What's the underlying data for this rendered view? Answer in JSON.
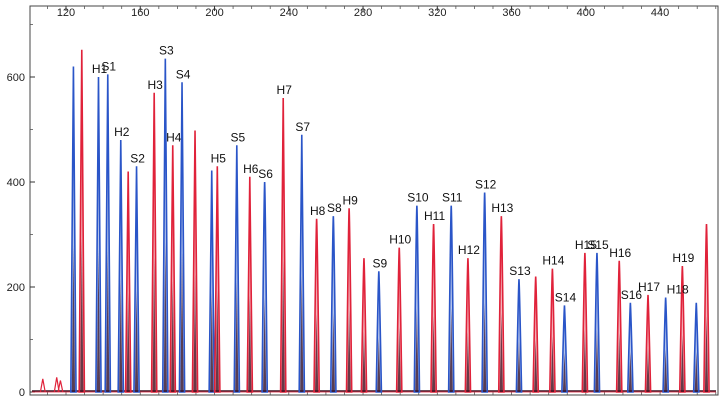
{
  "chart_data": {
    "type": "line",
    "title": "",
    "xlabel": "",
    "ylabel": "",
    "xlim": [
      104,
      470
    ],
    "ylim": [
      0,
      700
    ],
    "x_ticks": [
      120,
      160,
      200,
      240,
      280,
      320,
      360,
      400,
      440
    ],
    "y_ticks": [
      0,
      200,
      400,
      600
    ],
    "grid": false,
    "colors": {
      "blue": "#2a55c8",
      "red": "#e0223a",
      "dark": "#3a1020",
      "frame": "#333333"
    },
    "series": [
      {
        "color": "blue",
        "peaks": [
          {
            "x": 124,
            "y": 620,
            "label": ""
          },
          {
            "x": 137.5,
            "y": 600,
            "label": "H1"
          },
          {
            "x": 142.5,
            "y": 605,
            "label": "S1"
          },
          {
            "x": 149.5,
            "y": 480,
            "label": "H2"
          },
          {
            "x": 158,
            "y": 430,
            "label": "S2"
          },
          {
            "x": 173.5,
            "y": 635,
            "label": "S3"
          },
          {
            "x": 182.5,
            "y": 590,
            "label": "S4"
          },
          {
            "x": 198.5,
            "y": 422,
            "label": ""
          },
          {
            "x": 212,
            "y": 470,
            "label": "S5"
          },
          {
            "x": 227,
            "y": 400,
            "label": "S6"
          },
          {
            "x": 247,
            "y": 490,
            "label": "S7"
          },
          {
            "x": 264,
            "y": 335,
            "label": "S8"
          },
          {
            "x": 288.5,
            "y": 230,
            "label": "S9"
          },
          {
            "x": 309,
            "y": 355,
            "label": "S10"
          },
          {
            "x": 327.5,
            "y": 355,
            "label": "S11"
          },
          {
            "x": 345.5,
            "y": 380,
            "label": "S12"
          },
          {
            "x": 364,
            "y": 215,
            "label": "S13"
          },
          {
            "x": 388.5,
            "y": 165,
            "label": "S14"
          },
          {
            "x": 406,
            "y": 265,
            "label": "S15"
          },
          {
            "x": 424,
            "y": 170,
            "label": "S16"
          },
          {
            "x": 443,
            "y": 180,
            "label": ""
          },
          {
            "x": 459.5,
            "y": 170,
            "label": ""
          }
        ]
      },
      {
        "color": "red",
        "peaks": [
          {
            "x": 128.5,
            "y": 652,
            "label": ""
          },
          {
            "x": 153.5,
            "y": 420,
            "label": ""
          },
          {
            "x": 167.5,
            "y": 570,
            "label": "H3"
          },
          {
            "x": 177.5,
            "y": 470,
            "label": "H4"
          },
          {
            "x": 189.5,
            "y": 498,
            "label": ""
          },
          {
            "x": 201.5,
            "y": 430,
            "label": "H5"
          },
          {
            "x": 219,
            "y": 410,
            "label": "H6"
          },
          {
            "x": 237,
            "y": 560,
            "label": "H7"
          },
          {
            "x": 255,
            "y": 330,
            "label": "H8"
          },
          {
            "x": 272.5,
            "y": 350,
            "label": "H9"
          },
          {
            "x": 280.5,
            "y": 255,
            "label": ""
          },
          {
            "x": 299.5,
            "y": 275,
            "label": "H10"
          },
          {
            "x": 318,
            "y": 320,
            "label": "H11"
          },
          {
            "x": 336.5,
            "y": 255,
            "label": "H12"
          },
          {
            "x": 354.5,
            "y": 335,
            "label": "H13"
          },
          {
            "x": 373,
            "y": 220,
            "label": ""
          },
          {
            "x": 382,
            "y": 235,
            "label": "H14"
          },
          {
            "x": 399.5,
            "y": 265,
            "label": "H15"
          },
          {
            "x": 418,
            "y": 250,
            "label": "H16"
          },
          {
            "x": 433.5,
            "y": 185,
            "label": "H17"
          },
          {
            "x": 452,
            "y": 240,
            "label": "H19"
          },
          {
            "x": 465,
            "y": 320,
            "label": ""
          }
        ]
      }
    ],
    "annotations": [
      {
        "text": "H18",
        "x": 443,
        "y": 180
      }
    ],
    "small_peaks": [
      {
        "x": 107.5,
        "y": 25,
        "color": "red"
      },
      {
        "x": 115,
        "y": 28,
        "color": "red"
      },
      {
        "x": 117,
        "y": 22,
        "color": "red"
      }
    ]
  }
}
